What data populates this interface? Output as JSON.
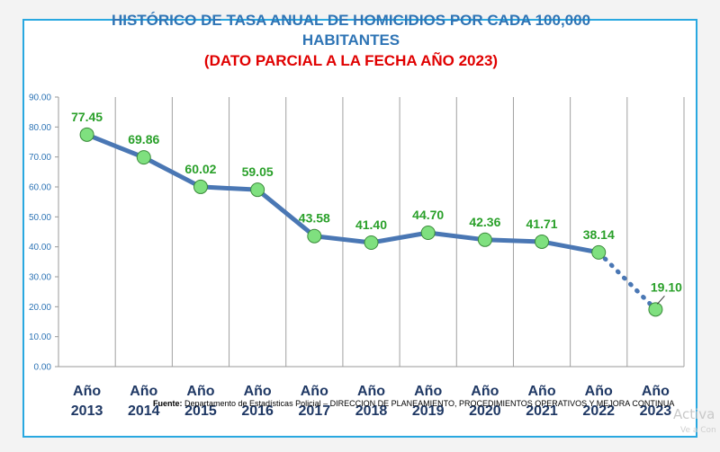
{
  "chart_data": {
    "type": "line",
    "title": "HISTÓRICO DE TASA ANUAL DE HOMICIDIOS POR CADA 100,000 HABITANTES",
    "subtitle": "(DATO PARCIAL A LA FECHA AÑO 2023)",
    "categories": [
      [
        "Año",
        "2013"
      ],
      [
        "Año",
        "2014"
      ],
      [
        "Año",
        "2015"
      ],
      [
        "Año",
        "2016"
      ],
      [
        "Año",
        "2017"
      ],
      [
        "Año",
        "2018"
      ],
      [
        "Año",
        "2019"
      ],
      [
        "Año",
        "2020"
      ],
      [
        "Año",
        "2021"
      ],
      [
        "Año",
        "2022"
      ],
      [
        "Año",
        "2023"
      ]
    ],
    "values": [
      77.45,
      69.86,
      60.02,
      59.05,
      43.58,
      41.4,
      44.7,
      42.36,
      41.71,
      38.14,
      19.1
    ],
    "value_labels": [
      "77.45",
      "69.86",
      "60.02",
      "59.05",
      "43.58",
      "41.40",
      "44.70",
      "42.36",
      "41.71",
      "38.14",
      "19.10"
    ],
    "partial_last_point": true,
    "ylim": [
      0,
      90
    ],
    "yticks": [
      0,
      10,
      20,
      30,
      40,
      50,
      60,
      70,
      80,
      90
    ],
    "ytick_labels": [
      "0.00",
      "10.00",
      "20.00",
      "30.00",
      "40.00",
      "50.00",
      "60.00",
      "70.00",
      "80.00",
      "90.00"
    ],
    "xlabel": "",
    "ylabel": "",
    "grid": "vertical",
    "colors": {
      "line": "#4a77b4",
      "marker": "#7fe07f",
      "marker_edge": "#3a8a3a",
      "label": "#2aa02a",
      "title": "#2e74b5",
      "subtitle": "#e00000",
      "border": "#29a8e0"
    }
  },
  "footer": {
    "label": "Fuente:",
    "text": " Departamento de Estadísticas Policial – DIRECCION DE PLANEAMIENTO, PROCEDIMIENTOS OPERATIVOS Y MEJORA CONTINUA"
  },
  "watermark": {
    "line1": "Activa",
    "line2": "Ve a Con"
  }
}
